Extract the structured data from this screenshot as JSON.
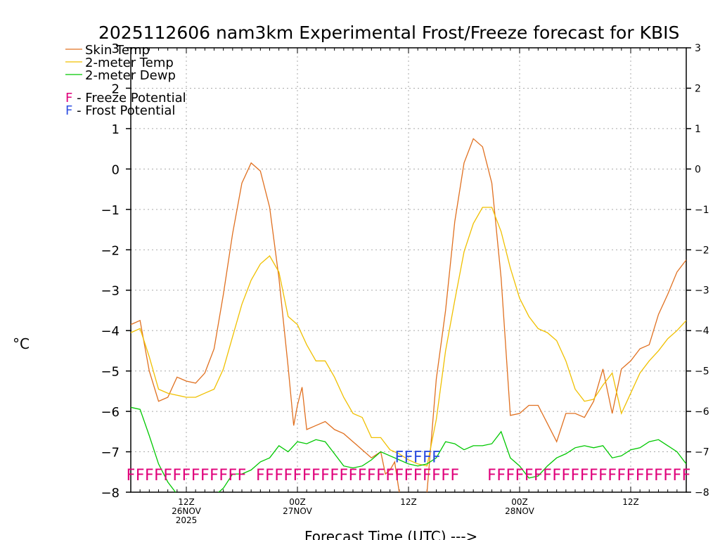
{
  "chart_data": {
    "type": "line",
    "title": "2025112606 nam3km Experimental Frost/Freeze forecast for KBIS",
    "ylabel": "°C",
    "xlabel": "Forecast Time (UTC) --->",
    "ylim": [
      -8,
      3
    ],
    "yticks": [
      -8,
      -7,
      -6,
      -5,
      -4,
      -3,
      -2,
      -1,
      0,
      1,
      2,
      3
    ],
    "xlim": [
      0,
      60
    ],
    "x_ticks": [
      {
        "x": 6,
        "lines": [
          "12Z",
          "26NOV",
          "2025"
        ]
      },
      {
        "x": 18,
        "lines": [
          "00Z",
          "27NOV"
        ]
      },
      {
        "x": 30,
        "lines": [
          "12Z"
        ]
      },
      {
        "x": 42,
        "lines": [
          "00Z",
          "28NOV"
        ]
      },
      {
        "x": 54,
        "lines": [
          "12Z"
        ]
      }
    ],
    "x_gridlines": [
      6,
      18,
      30,
      42,
      54
    ],
    "legend": [
      {
        "name": "Skin Temp",
        "color": "#e07020"
      },
      {
        "name": "2-meter Temp",
        "color": "#f0c000"
      },
      {
        "name": "2-meter Dewp",
        "color": "#00c800"
      }
    ],
    "potential_legend": [
      {
        "symbol": "F",
        "label": " - Freeze Potential",
        "color": "#e0007a"
      },
      {
        "symbol": "F",
        "label": " - Frost Potential",
        "color": "#3050e0"
      }
    ],
    "series": [
      {
        "name": "Skin Temp",
        "color": "#e07020",
        "x": [
          0,
          1,
          2,
          3,
          4,
          5,
          6,
          7,
          8,
          9,
          10,
          11,
          12,
          13,
          14,
          15,
          16,
          17,
          17.6,
          18,
          18.5,
          19,
          20,
          21,
          22,
          23,
          24,
          25,
          26,
          27,
          27.5,
          28,
          28.5,
          29,
          30,
          31,
          32,
          33,
          34,
          35,
          36,
          37,
          38,
          39,
          40,
          41,
          42,
          43,
          44,
          45,
          46,
          47,
          48,
          49,
          50,
          51,
          52,
          53,
          54,
          55,
          56,
          57,
          58,
          59,
          60
        ],
        "values": [
          -3.85,
          -3.75,
          -5.0,
          -5.75,
          -5.65,
          -5.15,
          -5.25,
          -5.3,
          -5.05,
          -4.45,
          -3.1,
          -1.6,
          -0.35,
          0.15,
          -0.05,
          -0.95,
          -2.7,
          -4.9,
          -6.35,
          -5.85,
          -5.4,
          -6.45,
          -6.35,
          -6.25,
          -6.45,
          -6.55,
          -6.75,
          -6.95,
          -7.15,
          -7.0,
          -7.55,
          -7.45,
          -7.25,
          -8.0,
          -8.2,
          -8.2,
          -8.0,
          -5.2,
          -3.5,
          -1.3,
          0.15,
          0.75,
          0.55,
          -0.35,
          -2.7,
          -6.1,
          -6.05,
          -5.85,
          -5.85,
          -6.3,
          -6.75,
          -6.05,
          -6.05,
          -6.15,
          -5.75,
          -4.95,
          -6.05,
          -4.95,
          -4.75,
          -4.45,
          -4.35,
          -3.6,
          -3.1,
          -2.55,
          -2.25
        ]
      },
      {
        "name": "2-meter Temp",
        "color": "#f0c000",
        "x": [
          0,
          1,
          2,
          3,
          4,
          5,
          6,
          7,
          8,
          9,
          10,
          11,
          12,
          13,
          14,
          15,
          16,
          17,
          18,
          19,
          20,
          21,
          22,
          23,
          24,
          25,
          26,
          27,
          28,
          29,
          30,
          31,
          32,
          33,
          34,
          35,
          36,
          37,
          38,
          39,
          40,
          41,
          42,
          43,
          44,
          45,
          46,
          47,
          48,
          49,
          50,
          51,
          52,
          53,
          54,
          55,
          56,
          57,
          58,
          59,
          60
        ],
        "values": [
          -4.05,
          -3.95,
          -4.65,
          -5.45,
          -5.55,
          -5.6,
          -5.65,
          -5.65,
          -5.55,
          -5.45,
          -4.95,
          -4.15,
          -3.35,
          -2.75,
          -2.35,
          -2.15,
          -2.55,
          -3.65,
          -3.85,
          -4.35,
          -4.75,
          -4.75,
          -5.15,
          -5.65,
          -6.05,
          -6.15,
          -6.65,
          -6.65,
          -6.95,
          -7.05,
          -7.2,
          -7.3,
          -7.35,
          -6.2,
          -4.5,
          -3.25,
          -2.05,
          -1.35,
          -0.95,
          -0.95,
          -1.55,
          -2.45,
          -3.2,
          -3.65,
          -3.95,
          -4.05,
          -4.25,
          -4.75,
          -5.45,
          -5.75,
          -5.7,
          -5.35,
          -5.05,
          -6.05,
          -5.55,
          -5.05,
          -4.75,
          -4.5,
          -4.2,
          -4.0,
          -3.75
        ]
      },
      {
        "name": "2-meter Dewp",
        "color": "#00c800",
        "x": [
          0,
          1,
          2,
          3,
          4,
          5,
          6,
          7,
          8,
          9,
          10,
          11,
          12,
          13,
          14,
          15,
          16,
          17,
          18,
          19,
          20,
          21,
          22,
          23,
          24,
          25,
          26,
          27,
          28,
          29,
          30,
          31,
          32,
          33,
          34,
          35,
          36,
          37,
          38,
          39,
          40,
          41,
          42,
          43,
          44,
          45,
          46,
          47,
          48,
          49,
          50,
          51,
          52,
          53,
          54,
          55,
          56,
          57,
          58,
          59,
          60
        ],
        "values": [
          -5.9,
          -5.95,
          -6.6,
          -7.3,
          -7.75,
          -8.05,
          -8.05,
          -8.15,
          -8.2,
          -8.1,
          -7.9,
          -7.55,
          -7.55,
          -7.45,
          -7.25,
          -7.15,
          -6.85,
          -7.0,
          -6.75,
          -6.8,
          -6.7,
          -6.75,
          -7.05,
          -7.35,
          -7.4,
          -7.35,
          -7.2,
          -7.0,
          -7.1,
          -7.2,
          -7.3,
          -7.35,
          -7.3,
          -7.15,
          -6.75,
          -6.8,
          -6.95,
          -6.85,
          -6.85,
          -6.8,
          -6.5,
          -7.15,
          -7.35,
          -7.65,
          -7.6,
          -7.35,
          -7.15,
          -7.05,
          -6.9,
          -6.85,
          -6.9,
          -6.85,
          -7.15,
          -7.1,
          -6.95,
          -6.9,
          -6.75,
          -6.7,
          -6.85,
          -7.0,
          -7.3
        ]
      }
    ],
    "freeze_markers": {
      "color": "#e0007a",
      "y": -7.55,
      "x": [
        0,
        1,
        2,
        3,
        4,
        5,
        6,
        7,
        8,
        9,
        10,
        11,
        12,
        14,
        15,
        16,
        17,
        18,
        19,
        20,
        21,
        22,
        23,
        24,
        25,
        26,
        27,
        28,
        29,
        30,
        31,
        32,
        33,
        34,
        35,
        39,
        40,
        41,
        42,
        43,
        44,
        45,
        46,
        47,
        48,
        49,
        50,
        51,
        52,
        53,
        54,
        55,
        56,
        57,
        58,
        59,
        60
      ]
    },
    "frost_markers": {
      "color": "#3050e0",
      "y": -7.1,
      "x": [
        29,
        30,
        31,
        32,
        33
      ]
    }
  }
}
